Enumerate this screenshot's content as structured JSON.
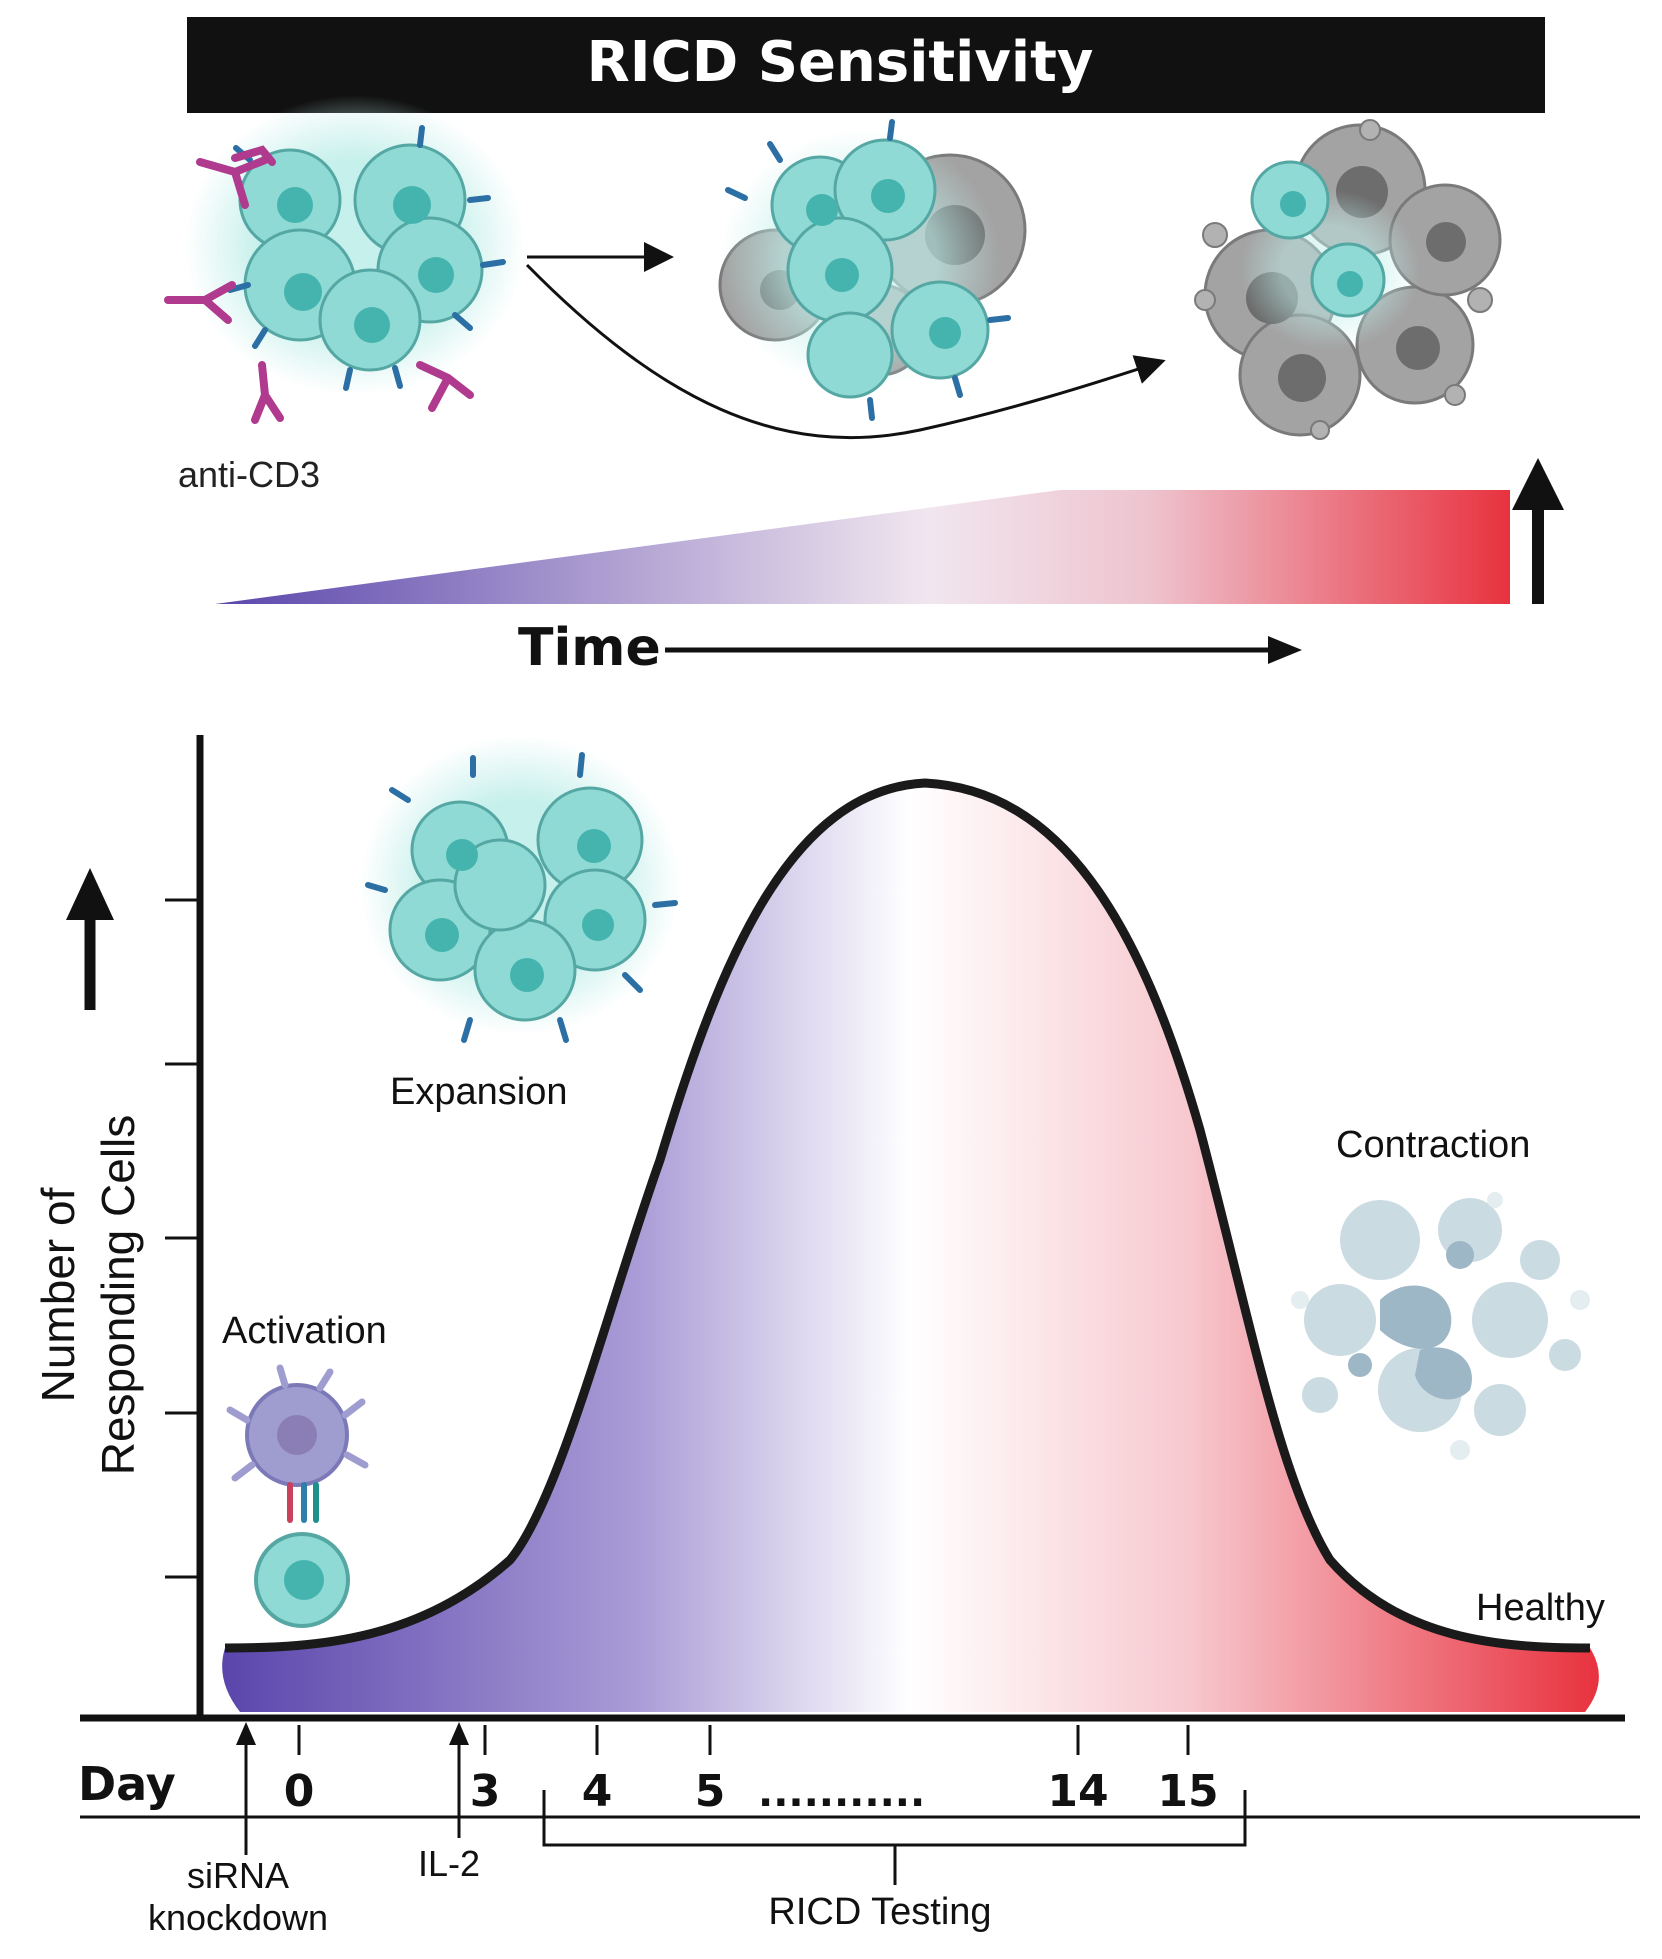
{
  "title": "RICD Sensitivity",
  "stimulus_label": "anti-CD3",
  "time_label": "Time",
  "y_axis_label_line1": "Number of",
  "y_axis_label_line2": "Responding Cells",
  "phases": {
    "activation": "Activation",
    "expansion": "Expansion",
    "contraction": "Contraction",
    "healthy": "Healthy"
  },
  "day_axis": {
    "label": "Day",
    "ticks": [
      "0",
      "3",
      "4",
      "5",
      "14",
      "15"
    ],
    "ellipsis": "...........",
    "markers": {
      "sirna_line1": "siRNA",
      "sirna_line2": "knockdown",
      "il2": "IL-2"
    },
    "testing_label": "RICD Testing"
  },
  "colors": {
    "purple": "#5a46ac",
    "white": "#ffffff",
    "red": "#e8323f",
    "cell_teal": "#7fd4cf",
    "dying_gray": "#9a9a9a"
  }
}
